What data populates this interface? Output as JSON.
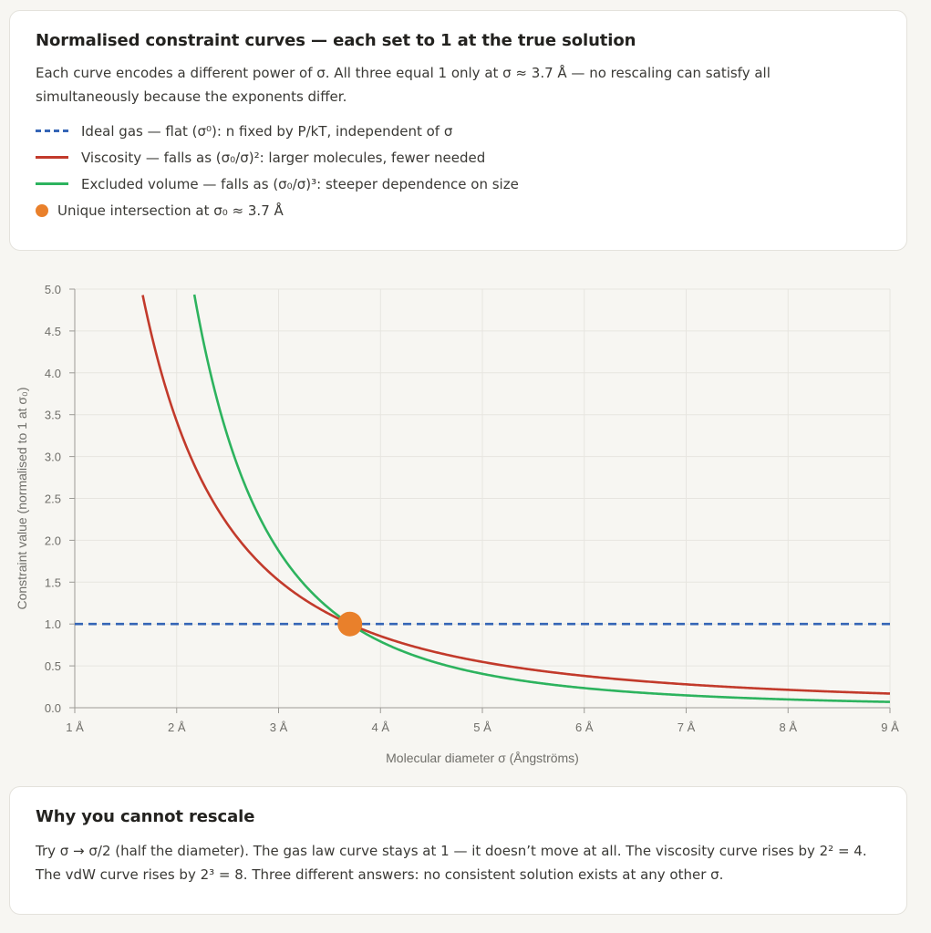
{
  "top_card": {
    "title": "Normalised constraint curves — each set to 1 at the true solution",
    "description": "Each curve encodes a different power of σ. All three equal 1 only at σ ≈ 3.7 Å — no rescaling can satisfy all simultaneously because the exponents differ.",
    "legend": [
      {
        "label": "Ideal gas — flat (σ⁰): n fixed by P/kT, independent of σ",
        "style": "dashed",
        "color": "#3565b6"
      },
      {
        "label": "Viscosity — falls as (σ₀/σ)²: larger molecules, fewer needed",
        "style": "solid",
        "color": "#c23a2b"
      },
      {
        "label": "Excluded volume — falls as (σ₀/σ)³: steeper dependence on size",
        "style": "solid",
        "color": "#2db35e"
      },
      {
        "label": "Unique intersection at σ₀ ≈ 3.7 Å",
        "style": "dot",
        "color": "#e9802b"
      }
    ]
  },
  "chart_data": {
    "type": "line",
    "xlabel": "Molecular diameter σ (Ångströms)",
    "ylabel": "Constraint value (normalised to 1 at σ₀)",
    "xlim": [
      1,
      9
    ],
    "ylim": [
      0,
      5
    ],
    "x_ticks": [
      1,
      2,
      3,
      4,
      5,
      6,
      7,
      8,
      9
    ],
    "x_tick_labels": [
      "1 Å",
      "2 Å",
      "3 Å",
      "4 Å",
      "5 Å",
      "6 Å",
      "7 Å",
      "8 Å",
      "9 Å"
    ],
    "y_ticks": [
      0,
      0.5,
      1,
      1.5,
      2,
      2.5,
      3,
      3.5,
      4,
      4.5,
      5
    ],
    "y_tick_labels": [
      "0.0",
      "0.5",
      "1.0",
      "1.5",
      "2.0",
      "2.5",
      "3.0",
      "3.5",
      "4.0",
      "4.5",
      "5.0"
    ],
    "grid": true,
    "sigma0": 3.7,
    "series": [
      {
        "id": "ideal-gas",
        "exponent": 0,
        "color": "#3565b6",
        "style": "dashed",
        "x": [
          1,
          2,
          3,
          3.7,
          4,
          5,
          6,
          7,
          8,
          9
        ],
        "values": [
          1,
          1,
          1,
          1,
          1,
          1,
          1,
          1,
          1,
          1
        ]
      },
      {
        "id": "viscosity",
        "exponent": 2,
        "color": "#c23a2b",
        "style": "solid",
        "x": [
          1.65,
          2,
          2.5,
          3,
          3.7,
          4,
          5,
          6,
          7,
          8,
          9
        ],
        "values": [
          5.03,
          3.42,
          2.19,
          1.52,
          1.0,
          0.86,
          0.55,
          0.38,
          0.28,
          0.21,
          0.17
        ]
      },
      {
        "id": "excluded-volume",
        "exponent": 3,
        "color": "#2db35e",
        "style": "solid",
        "x": [
          2.16,
          2.5,
          3,
          3.7,
          4,
          5,
          6,
          7,
          8,
          9
        ],
        "values": [
          5.03,
          3.24,
          1.88,
          1.0,
          0.79,
          0.41,
          0.23,
          0.15,
          0.1,
          0.07
        ]
      }
    ],
    "intersection": {
      "x": 3.7,
      "y": 1.0,
      "color": "#e9802b"
    }
  },
  "bottom_card": {
    "title": "Why you cannot rescale",
    "body": "Try σ → σ/2 (half the diameter). The gas law curve stays at 1 — it doesn’t move at all. The viscosity curve rises by 2² = 4. The vdW curve rises by 2³ = 8. Three different answers: no consistent solution exists at any other σ."
  }
}
